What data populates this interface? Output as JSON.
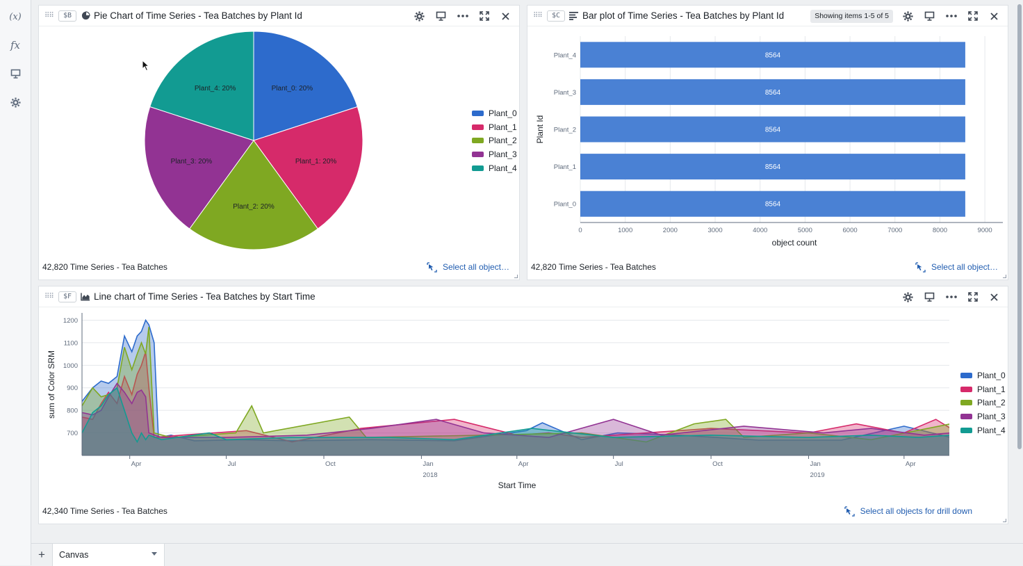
{
  "left_rail": {
    "items": [
      {
        "name": "variables",
        "glyph": "(x)"
      },
      {
        "name": "functions",
        "glyph": "fx"
      },
      {
        "name": "present",
        "icon": "presentation-icon"
      },
      {
        "name": "settings",
        "icon": "gear-icon"
      }
    ]
  },
  "panels": {
    "pie": {
      "tag": "$B",
      "title": "Pie Chart of Time Series - Tea Batches by Plant Id",
      "footer_count": "42,820 Time Series - Tea Batches",
      "footer_link": "Select all object…"
    },
    "bar": {
      "tag": "$C",
      "title": "Bar plot of Time Series - Tea Batches by Plant Id",
      "showing": "Showing items 1-5 of 5",
      "footer_count": "42,820 Time Series - Tea Batches",
      "footer_link": "Select all object…"
    },
    "line": {
      "tag": "$F",
      "title": "Line chart of Time Series - Tea Batches by Start Time",
      "footer_count": "42,340 Time Series - Tea Batches",
      "footer_link": "Select all objects for drill down"
    }
  },
  "colors": {
    "Plant_0": "#2d6bcc",
    "Plant_1": "#d62a6a",
    "Plant_2": "#7fa822",
    "Plant_3": "#923393",
    "Plant_4": "#129b92",
    "bar": "#4a81d4",
    "link": "#215db0"
  },
  "chart_data": [
    {
      "type": "pie",
      "categories": [
        "Plant_0",
        "Plant_1",
        "Plant_2",
        "Plant_3",
        "Plant_4"
      ],
      "values": [
        20,
        20,
        20,
        20,
        20
      ],
      "slice_labels": [
        "Plant_0: 20%",
        "Plant_1: 20%",
        "Plant_2: 20%",
        "Plant_3: 20%",
        "Plant_4: 20%"
      ],
      "legend": [
        "Plant_0",
        "Plant_1",
        "Plant_2",
        "Plant_3",
        "Plant_4"
      ],
      "legend_position": "right"
    },
    {
      "type": "bar",
      "orientation": "horizontal",
      "categories": [
        "Plant_4",
        "Plant_3",
        "Plant_2",
        "Plant_1",
        "Plant_0"
      ],
      "values": [
        8564,
        8564,
        8564,
        8564,
        8564
      ],
      "value_labels": [
        "8564",
        "8564",
        "8564",
        "8564",
        "8564"
      ],
      "xlabel": "object count",
      "ylabel": "Plant Id",
      "xlim": [
        0,
        9400
      ],
      "x_ticks": [
        "0",
        "1000",
        "2000",
        "3000",
        "4000",
        "5000",
        "6000",
        "7000",
        "8000",
        "9000"
      ],
      "grid": true
    },
    {
      "type": "area",
      "xlabel": "Start Time",
      "ylabel": "sum of Color SRM",
      "ylim": [
        600,
        1220
      ],
      "y_ticks": [
        "700",
        "800",
        "900",
        "1000",
        "1100",
        "1200"
      ],
      "x_range": [
        "2017-02-15",
        "2019-05-15"
      ],
      "x_ticks": [
        {
          "date": "2017-04-01",
          "label": "Apr",
          "sub": ""
        },
        {
          "date": "2017-07-01",
          "label": "Jul",
          "sub": ""
        },
        {
          "date": "2017-10-01",
          "label": "Oct",
          "sub": ""
        },
        {
          "date": "2018-01-01",
          "label": "Jan",
          "sub": "2018"
        },
        {
          "date": "2018-04-01",
          "label": "Apr",
          "sub": ""
        },
        {
          "date": "2018-07-01",
          "label": "Jul",
          "sub": ""
        },
        {
          "date": "2018-10-01",
          "label": "Oct",
          "sub": ""
        },
        {
          "date": "2019-01-01",
          "label": "Jan",
          "sub": "2019"
        },
        {
          "date": "2019-04-01",
          "label": "Apr",
          "sub": ""
        }
      ],
      "legend_position": "right",
      "series": [
        {
          "name": "Plant_0",
          "points": [
            [
              "2017-02-15",
              840
            ],
            [
              "2017-02-25",
              900
            ],
            [
              "2017-03-05",
              930
            ],
            [
              "2017-03-12",
              920
            ],
            [
              "2017-03-20",
              950
            ],
            [
              "2017-03-27",
              1130
            ],
            [
              "2017-04-03",
              1060
            ],
            [
              "2017-04-08",
              1130
            ],
            [
              "2017-04-12",
              1150
            ],
            [
              "2017-04-16",
              1200
            ],
            [
              "2017-04-19",
              1180
            ],
            [
              "2017-04-24",
              1100
            ],
            [
              "2017-04-28",
              680
            ],
            [
              "2017-05-10",
              690
            ],
            [
              "2017-06-01",
              665
            ],
            [
              "2017-07-15",
              670
            ],
            [
              "2017-09-01",
              665
            ],
            [
              "2017-11-15",
              670
            ],
            [
              "2018-02-01",
              665
            ],
            [
              "2018-04-10",
              710
            ],
            [
              "2018-04-25",
              745
            ],
            [
              "2018-06-01",
              670
            ],
            [
              "2018-07-05",
              700
            ],
            [
              "2018-09-01",
              690
            ],
            [
              "2018-11-15",
              668
            ],
            [
              "2019-02-01",
              668
            ],
            [
              "2019-04-01",
              730
            ],
            [
              "2019-05-15",
              680
            ]
          ]
        },
        {
          "name": "Plant_1",
          "points": [
            [
              "2017-02-15",
              770
            ],
            [
              "2017-02-25",
              760
            ],
            [
              "2017-03-05",
              830
            ],
            [
              "2017-03-12",
              880
            ],
            [
              "2017-03-20",
              830
            ],
            [
              "2017-03-27",
              950
            ],
            [
              "2017-04-03",
              870
            ],
            [
              "2017-04-08",
              960
            ],
            [
              "2017-04-12",
              1000
            ],
            [
              "2017-04-16",
              1060
            ],
            [
              "2017-04-19",
              900
            ],
            [
              "2017-04-24",
              680
            ],
            [
              "2017-05-20",
              690
            ],
            [
              "2017-07-20",
              710
            ],
            [
              "2017-09-01",
              660
            ],
            [
              "2017-11-05",
              720
            ],
            [
              "2018-02-01",
              760
            ],
            [
              "2018-04-01",
              690
            ],
            [
              "2018-05-01",
              700
            ],
            [
              "2018-06-01",
              680
            ],
            [
              "2018-08-01",
              700
            ],
            [
              "2018-10-01",
              720
            ],
            [
              "2019-01-01",
              700
            ],
            [
              "2019-02-15",
              740
            ],
            [
              "2019-04-01",
              700
            ],
            [
              "2019-05-01",
              760
            ],
            [
              "2019-05-15",
              720
            ]
          ]
        },
        {
          "name": "Plant_2",
          "points": [
            [
              "2017-02-15",
              820
            ],
            [
              "2017-02-25",
              900
            ],
            [
              "2017-03-05",
              860
            ],
            [
              "2017-03-12",
              870
            ],
            [
              "2017-03-20",
              900
            ],
            [
              "2017-03-27",
              1080
            ],
            [
              "2017-04-03",
              980
            ],
            [
              "2017-04-08",
              1050
            ],
            [
              "2017-04-12",
              1100
            ],
            [
              "2017-04-16",
              1050
            ],
            [
              "2017-04-19",
              1170
            ],
            [
              "2017-04-24",
              700
            ],
            [
              "2017-05-10",
              680
            ],
            [
              "2017-07-10",
              700
            ],
            [
              "2017-07-25",
              820
            ],
            [
              "2017-08-05",
              700
            ],
            [
              "2017-10-25",
              770
            ],
            [
              "2017-11-10",
              680
            ],
            [
              "2018-03-01",
              690
            ],
            [
              "2018-06-01",
              700
            ],
            [
              "2018-08-01",
              660
            ],
            [
              "2018-09-15",
              740
            ],
            [
              "2018-10-15",
              760
            ],
            [
              "2018-11-01",
              680
            ],
            [
              "2019-01-01",
              700
            ],
            [
              "2019-03-01",
              670
            ],
            [
              "2019-05-15",
              740
            ]
          ]
        },
        {
          "name": "Plant_3",
          "points": [
            [
              "2017-02-15",
              790
            ],
            [
              "2017-02-25",
              780
            ],
            [
              "2017-03-05",
              800
            ],
            [
              "2017-03-12",
              860
            ],
            [
              "2017-03-20",
              920
            ],
            [
              "2017-03-27",
              880
            ],
            [
              "2017-04-03",
              830
            ],
            [
              "2017-04-08",
              880
            ],
            [
              "2017-04-12",
              890
            ],
            [
              "2017-04-16",
              860
            ],
            [
              "2017-04-19",
              700
            ],
            [
              "2017-05-01",
              680
            ],
            [
              "2017-07-01",
              680
            ],
            [
              "2017-09-15",
              690
            ],
            [
              "2017-11-15",
              720
            ],
            [
              "2018-01-15",
              760
            ],
            [
              "2018-03-01",
              700
            ],
            [
              "2018-05-01",
              680
            ],
            [
              "2018-07-01",
              760
            ],
            [
              "2018-08-15",
              690
            ],
            [
              "2018-11-01",
              730
            ],
            [
              "2019-01-15",
              700
            ],
            [
              "2019-03-01",
              720
            ],
            [
              "2019-04-20",
              690
            ],
            [
              "2019-05-15",
              700
            ]
          ]
        },
        {
          "name": "Plant_4",
          "points": [
            [
              "2017-02-15",
              700
            ],
            [
              "2017-02-25",
              790
            ],
            [
              "2017-03-05",
              820
            ],
            [
              "2017-03-12",
              870
            ],
            [
              "2017-03-20",
              900
            ],
            [
              "2017-03-27",
              800
            ],
            [
              "2017-04-03",
              700
            ],
            [
              "2017-04-08",
              660
            ],
            [
              "2017-04-12",
              700
            ],
            [
              "2017-04-16",
              670
            ],
            [
              "2017-04-19",
              690
            ],
            [
              "2017-05-01",
              670
            ],
            [
              "2017-06-15",
              700
            ],
            [
              "2017-07-01",
              670
            ],
            [
              "2017-09-01",
              680
            ],
            [
              "2017-12-01",
              680
            ],
            [
              "2018-02-01",
              670
            ],
            [
              "2018-04-15",
              720
            ],
            [
              "2018-07-01",
              680
            ],
            [
              "2018-10-01",
              690
            ],
            [
              "2019-01-01",
              680
            ],
            [
              "2019-03-01",
              690
            ],
            [
              "2019-04-15",
              680
            ],
            [
              "2019-05-15",
              690
            ]
          ]
        }
      ]
    }
  ],
  "bottom_bar": {
    "add_label": "+",
    "tab_label": "Canvas"
  }
}
